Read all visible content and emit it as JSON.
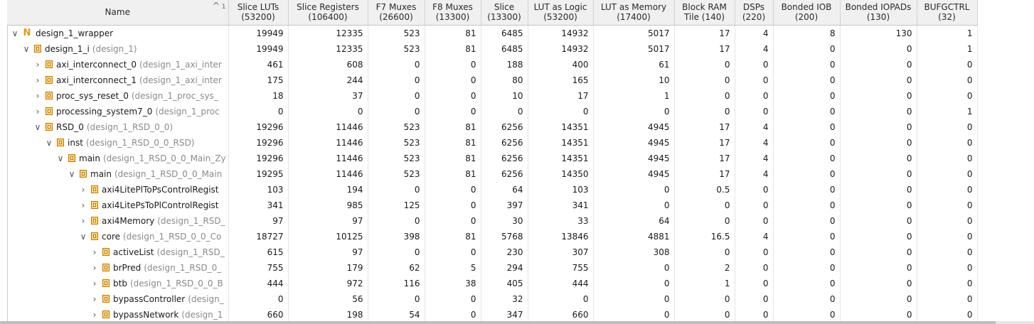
{
  "columns": [
    {
      "key": "name",
      "label": "Name",
      "sub": ""
    },
    {
      "key": "luts",
      "label": "Slice LUTs",
      "sub": "(53200)"
    },
    {
      "key": "regs",
      "label": "Slice Registers",
      "sub": "(106400)"
    },
    {
      "key": "f7",
      "label": "F7 Muxes",
      "sub": "(26600)"
    },
    {
      "key": "f8",
      "label": "F8 Muxes",
      "sub": "(13300)"
    },
    {
      "key": "slice",
      "label": "Slice",
      "sub": "(13300)"
    },
    {
      "key": "lutlogic",
      "label": "LUT as Logic",
      "sub": "(53200)"
    },
    {
      "key": "lutmem",
      "label": "LUT as Memory",
      "sub": "(17400)"
    },
    {
      "key": "bram",
      "label": "Block RAM",
      "sub": "Tile (140)"
    },
    {
      "key": "dsp",
      "label": "DSPs",
      "sub": "(220)"
    },
    {
      "key": "iob",
      "label": "Bonded IOB",
      "sub": "(200)"
    },
    {
      "key": "iopads",
      "label": "Bonded IOPADs",
      "sub": "(130)"
    },
    {
      "key": "bufg",
      "label": "BUFGCTRL",
      "sub": "(32)"
    }
  ],
  "sort": {
    "indicator": "1",
    "icon": "sort-ascending-icon"
  },
  "rows": [
    {
      "level": 0,
      "expander": "expanded",
      "icon": "netlist-icon",
      "name": "design_1_wrapper",
      "module": "",
      "values": [
        "19949",
        "12335",
        "523",
        "81",
        "6485",
        "14932",
        "5017",
        "17",
        "4",
        "8",
        "130",
        "1"
      ]
    },
    {
      "level": 1,
      "expander": "expanded",
      "icon": "module-icon",
      "name": "design_1_i",
      "module": "(design_1)",
      "values": [
        "19949",
        "12335",
        "523",
        "81",
        "6485",
        "14932",
        "5017",
        "17",
        "4",
        "0",
        "0",
        "1"
      ]
    },
    {
      "level": 2,
      "expander": "collapsed",
      "icon": "module-icon",
      "name": "axi_interconnect_0",
      "module": "(design_1_axi_inter",
      "values": [
        "461",
        "608",
        "0",
        "0",
        "188",
        "400",
        "61",
        "0",
        "0",
        "0",
        "0",
        "0"
      ]
    },
    {
      "level": 2,
      "expander": "collapsed",
      "icon": "module-icon",
      "name": "axi_interconnect_1",
      "module": "(design_1_axi_inter",
      "values": [
        "175",
        "244",
        "0",
        "0",
        "80",
        "165",
        "10",
        "0",
        "0",
        "0",
        "0",
        "0"
      ]
    },
    {
      "level": 2,
      "expander": "collapsed",
      "icon": "module-icon",
      "name": "proc_sys_reset_0",
      "module": "(design_1_proc_sys_",
      "values": [
        "18",
        "37",
        "0",
        "0",
        "10",
        "17",
        "1",
        "0",
        "0",
        "0",
        "0",
        "0"
      ]
    },
    {
      "level": 2,
      "expander": "collapsed",
      "icon": "module-icon",
      "name": "processing_system7_0",
      "module": "(design_1_proc",
      "values": [
        "0",
        "0",
        "0",
        "0",
        "0",
        "0",
        "0",
        "0",
        "0",
        "0",
        "0",
        "1"
      ]
    },
    {
      "level": 2,
      "expander": "expanded",
      "icon": "module-icon",
      "name": "RSD_0",
      "module": "(design_1_RSD_0_0)",
      "values": [
        "19296",
        "11446",
        "523",
        "81",
        "6256",
        "14351",
        "4945",
        "17",
        "4",
        "0",
        "0",
        "0"
      ]
    },
    {
      "level": 3,
      "expander": "expanded",
      "icon": "module-icon",
      "name": "inst",
      "module": "(design_1_RSD_0_0_RSD)",
      "values": [
        "19296",
        "11446",
        "523",
        "81",
        "6256",
        "14351",
        "4945",
        "17",
        "4",
        "0",
        "0",
        "0"
      ]
    },
    {
      "level": 4,
      "expander": "expanded",
      "icon": "module-icon",
      "name": "main",
      "module": "(design_1_RSD_0_0_Main_Zy",
      "values": [
        "19296",
        "11446",
        "523",
        "81",
        "6256",
        "14351",
        "4945",
        "17",
        "4",
        "0",
        "0",
        "0"
      ]
    },
    {
      "level": 5,
      "expander": "expanded",
      "icon": "module-icon",
      "name": "main",
      "module": "(design_1_RSD_0_0_Main",
      "values": [
        "19295",
        "11446",
        "523",
        "81",
        "6256",
        "14350",
        "4945",
        "17",
        "4",
        "0",
        "0",
        "0"
      ]
    },
    {
      "level": 6,
      "expander": "collapsed",
      "icon": "module-icon",
      "name": "axi4LitePlToPsControlRegist",
      "module": "",
      "values": [
        "103",
        "194",
        "0",
        "0",
        "64",
        "103",
        "0",
        "0.5",
        "0",
        "0",
        "0",
        "0"
      ]
    },
    {
      "level": 6,
      "expander": "collapsed",
      "icon": "module-icon",
      "name": "axi4LitePsToPlControlRegist",
      "module": "",
      "values": [
        "341",
        "985",
        "125",
        "0",
        "397",
        "341",
        "0",
        "0",
        "0",
        "0",
        "0",
        "0"
      ]
    },
    {
      "level": 6,
      "expander": "collapsed",
      "icon": "module-icon",
      "name": "axi4Memory",
      "module": "(design_1_RSD_",
      "values": [
        "97",
        "97",
        "0",
        "0",
        "30",
        "33",
        "64",
        "0",
        "0",
        "0",
        "0",
        "0"
      ]
    },
    {
      "level": 6,
      "expander": "expanded",
      "icon": "module-icon",
      "name": "core",
      "module": "(design_1_RSD_0_0_Co",
      "values": [
        "18727",
        "10125",
        "398",
        "81",
        "5768",
        "13846",
        "4881",
        "16.5",
        "4",
        "0",
        "0",
        "0"
      ]
    },
    {
      "level": 7,
      "expander": "collapsed",
      "icon": "module-icon",
      "name": "activeList",
      "module": "(design_1_RSD_",
      "values": [
        "615",
        "97",
        "0",
        "0",
        "230",
        "307",
        "308",
        "0",
        "0",
        "0",
        "0",
        "0"
      ]
    },
    {
      "level": 7,
      "expander": "collapsed",
      "icon": "module-icon",
      "name": "brPred",
      "module": "(design_1_RSD_0_",
      "values": [
        "755",
        "179",
        "62",
        "5",
        "294",
        "755",
        "0",
        "2",
        "0",
        "0",
        "0",
        "0"
      ]
    },
    {
      "level": 7,
      "expander": "collapsed",
      "icon": "module-icon",
      "name": "btb",
      "module": "(design_1_RSD_0_0_B",
      "values": [
        "444",
        "972",
        "116",
        "38",
        "405",
        "444",
        "0",
        "1",
        "0",
        "0",
        "0",
        "0"
      ]
    },
    {
      "level": 7,
      "expander": "collapsed",
      "icon": "module-icon",
      "name": "bypassController",
      "module": "(design_",
      "values": [
        "0",
        "56",
        "0",
        "0",
        "32",
        "0",
        "0",
        "0",
        "0",
        "0",
        "0",
        "0"
      ]
    },
    {
      "level": 7,
      "expander": "collapsed",
      "icon": "module-icon",
      "name": "bypassNetwork",
      "module": "(design_1",
      "values": [
        "660",
        "198",
        "54",
        "0",
        "347",
        "660",
        "0",
        "0",
        "0",
        "0",
        "0",
        "0"
      ]
    }
  ]
}
